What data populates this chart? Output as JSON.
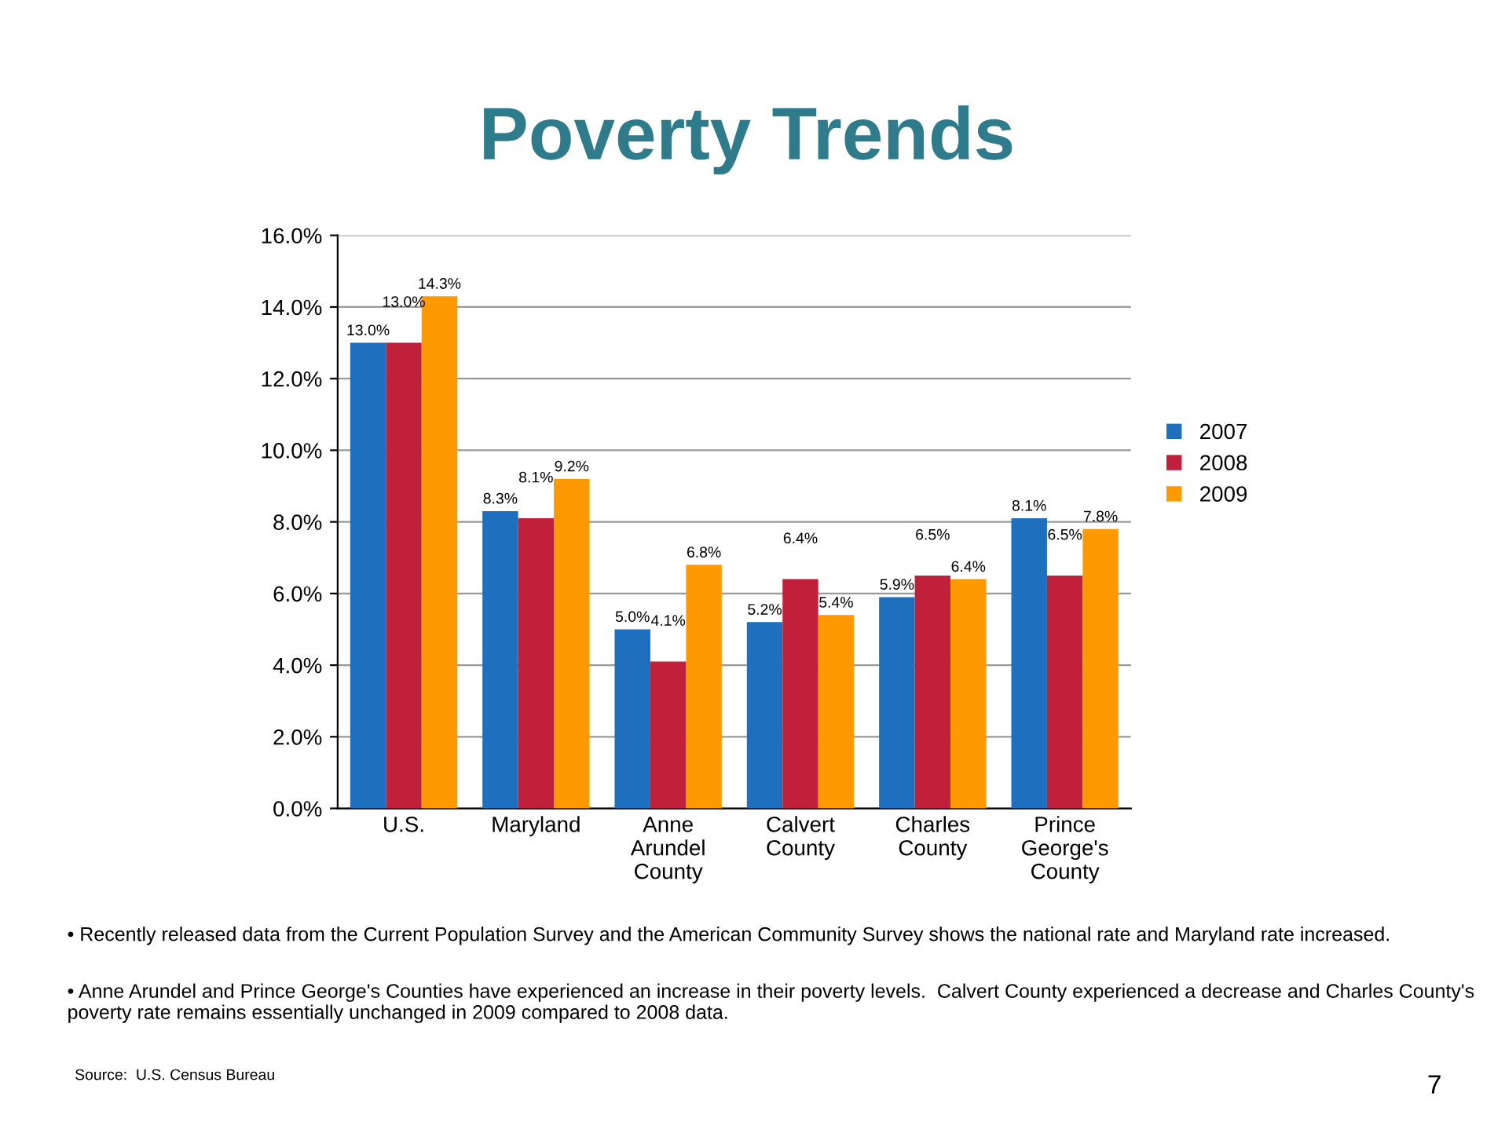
{
  "chart_data": {
    "type": "bar",
    "title": "Poverty Trends",
    "categories": [
      "U.S.",
      "Maryland",
      "Anne\nArundel\nCounty",
      "Calvert\nCounty",
      "Charles\nCounty",
      "Prince\nGeorge's\nCounty"
    ],
    "series": [
      {
        "name": "2007",
        "color": "#1f6fbf",
        "values": [
          13.0,
          8.3,
          5.0,
          5.2,
          5.9,
          8.1
        ],
        "value_labels": [
          "13.0%",
          "8.3%",
          "5.0%",
          "5.2%",
          "5.9%",
          "8.1%"
        ]
      },
      {
        "name": "2008",
        "color": "#c0203a",
        "values": [
          13.0,
          8.1,
          4.1,
          6.4,
          6.5,
          6.5
        ],
        "value_labels": [
          "13.0%",
          "8.1%",
          "4.1%",
          "6.4%",
          "6.5%",
          "6.5%"
        ]
      },
      {
        "name": "2009",
        "color": "#ff9900",
        "values": [
          14.3,
          9.2,
          6.8,
          5.4,
          6.4,
          7.8
        ],
        "value_labels": [
          "14.3%",
          "9.2%",
          "6.8%",
          "5.4%",
          "6.4%",
          "7.8%"
        ]
      }
    ],
    "ylim": [
      0,
      16
    ],
    "yticks": [
      {
        "value": 0,
        "label": "0.0%"
      },
      {
        "value": 2,
        "label": "2.0%"
      },
      {
        "value": 4,
        "label": "4.0%"
      },
      {
        "value": 6,
        "label": "6.0%"
      },
      {
        "value": 8,
        "label": "8.0%"
      },
      {
        "value": 10,
        "label": "10.0%"
      },
      {
        "value": 12,
        "label": "12.0%"
      },
      {
        "value": 14,
        "label": "14.0%"
      },
      {
        "value": 16,
        "label": "16.0%"
      }
    ],
    "grid": "y",
    "legend": "right",
    "annotations": [
      "• Recently released data from the Current Population Survey and the American Community Survey shows the national rate and Maryland rate increased.",
      "• Anne Arundel and Prince George's Counties have experienced an increase in their poverty levels.  Calvert County experienced a decrease and Charles County's poverty rate remains essentially unchanged in 2009 compared to 2008 data.",
      "Source:  U.S. Census Bureau",
      "7"
    ]
  }
}
